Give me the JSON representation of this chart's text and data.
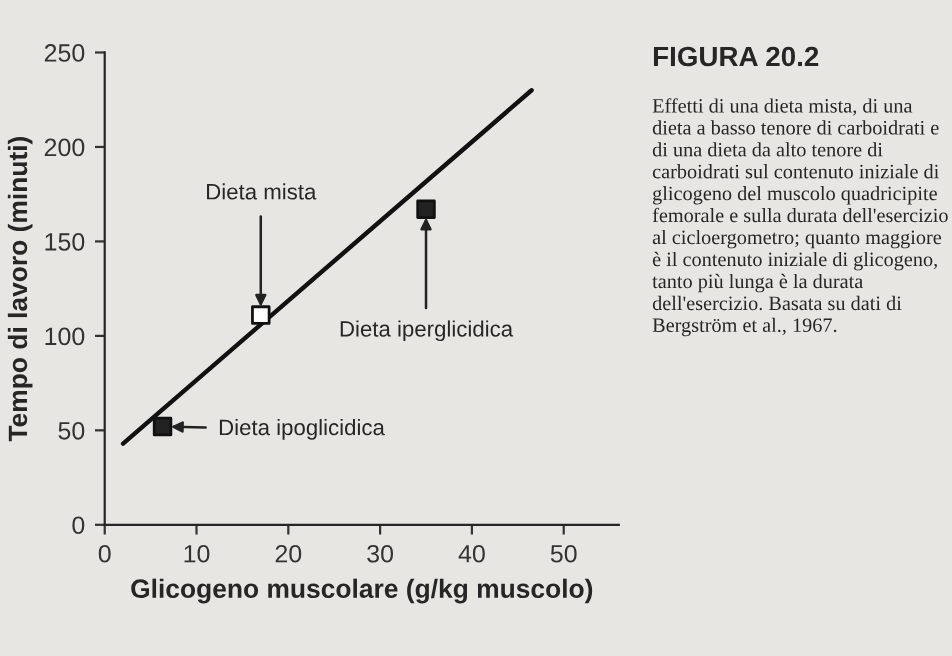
{
  "chart_data": {
    "type": "scatter",
    "title": "FIGURA 20.2",
    "xlabel": "Glicogeno muscolare (g/kg muscolo)",
    "ylabel": "Tempo di lavoro (minuti)",
    "xlim": [
      0,
      56
    ],
    "ylim": [
      0,
      250
    ],
    "xticks": [
      0,
      10,
      20,
      30,
      40,
      50
    ],
    "yticks": [
      0,
      50,
      100,
      150,
      200,
      250
    ],
    "grid": false,
    "series": [
      {
        "x": [
          6.3,
          17,
          35
        ],
        "values": [
          52,
          111,
          167
        ],
        "colors": [
          "#222222",
          "#ffffff",
          "#222222"
        ],
        "marker": "square"
      },
      {
        "type": "line",
        "x": [
          2,
          46.5
        ],
        "values": [
          43,
          230
        ],
        "color": "#111111",
        "line_style": "solid",
        "marker": "none"
      }
    ],
    "annotations": [
      {
        "text": "Dieta ipoglicidica",
        "x": 6.3,
        "y": 52
      },
      {
        "text": "Dieta mista",
        "x": 17,
        "y": 111
      },
      {
        "text": "Dieta iperglicidica",
        "x": 35,
        "y": 167
      },
      "Effetti di una dieta mista, di una dieta a basso tenore di carboidrati e di una dieta da alto tenore di carboidrati sul contenuto iniziale di glicogeno del muscolo quadricipite femorale e sulla durata dell'esercizio al cicloergometro; quanto maggiore è il contenuto iniziale di glicogeno, tanto più lunga è la durata dell'esercizio. Basata su dati di Bergström et al., 1967."
    ]
  }
}
